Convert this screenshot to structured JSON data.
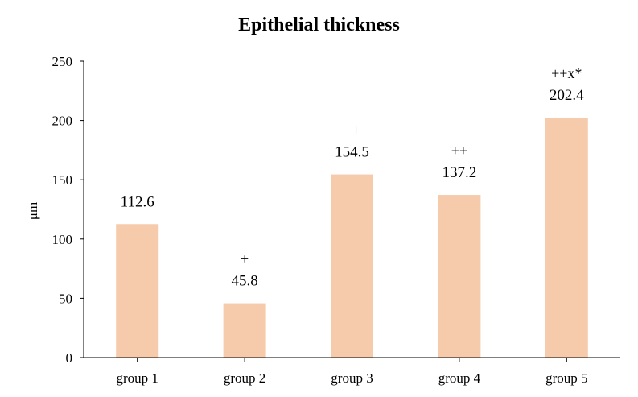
{
  "chart_data": {
    "type": "bar",
    "title": "Epithelial thickness",
    "xlabel": "",
    "ylabel": "μm",
    "categories": [
      "group 1",
      "group 2",
      "group 3",
      "group 4",
      "group 5"
    ],
    "values": [
      112.6,
      45.8,
      154.5,
      137.2,
      202.4
    ],
    "data_labels": [
      "112.6",
      "45.8",
      "154.5",
      "137.2",
      "202.4"
    ],
    "annotations": [
      "",
      "+",
      "++",
      "++",
      "++x*"
    ],
    "ylim": [
      0,
      250
    ],
    "yticks": [
      0,
      50,
      100,
      150,
      200,
      250
    ],
    "grid": false,
    "legend": "none",
    "bar_color": "#f6cbac"
  }
}
